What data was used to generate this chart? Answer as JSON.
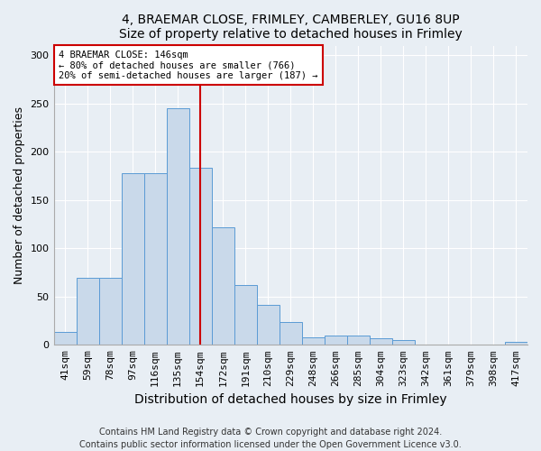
{
  "title1": "4, BRAEMAR CLOSE, FRIMLEY, CAMBERLEY, GU16 8UP",
  "title2": "Size of property relative to detached houses in Frimley",
  "xlabel": "Distribution of detached houses by size in Frimley",
  "ylabel": "Number of detached properties",
  "categories": [
    "41sqm",
    "59sqm",
    "78sqm",
    "97sqm",
    "116sqm",
    "135sqm",
    "154sqm",
    "172sqm",
    "191sqm",
    "210sqm",
    "229sqm",
    "248sqm",
    "266sqm",
    "285sqm",
    "304sqm",
    "323sqm",
    "342sqm",
    "361sqm",
    "379sqm",
    "398sqm",
    "417sqm"
  ],
  "values": [
    13,
    69,
    69,
    178,
    178,
    245,
    183,
    122,
    62,
    41,
    24,
    8,
    10,
    10,
    7,
    5,
    0,
    0,
    0,
    0,
    3
  ],
  "bar_color": "#c9d9ea",
  "bar_edge_color": "#5b9bd5",
  "bar_width": 1.0,
  "redline_index": 6,
  "annotation_line1": "4 BRAEMAR CLOSE: 146sqm",
  "annotation_line2": "← 80% of detached houses are smaller (766)",
  "annotation_line3": "20% of semi-detached houses are larger (187) →",
  "annotation_box_color": "#ffffff",
  "annotation_box_edge": "#cc0000",
  "redline_color": "#cc0000",
  "footer_line1": "Contains HM Land Registry data © Crown copyright and database right 2024.",
  "footer_line2": "Contains public sector information licensed under the Open Government Licence v3.0.",
  "ylim": [
    0,
    310
  ],
  "yticks": [
    0,
    50,
    100,
    150,
    200,
    250,
    300
  ],
  "title_fontsize": 10,
  "axis_label_fontsize": 9,
  "tick_fontsize": 8,
  "footer_fontsize": 7,
  "background_color": "#e8eef4",
  "plot_bg_color": "#e8eef4"
}
